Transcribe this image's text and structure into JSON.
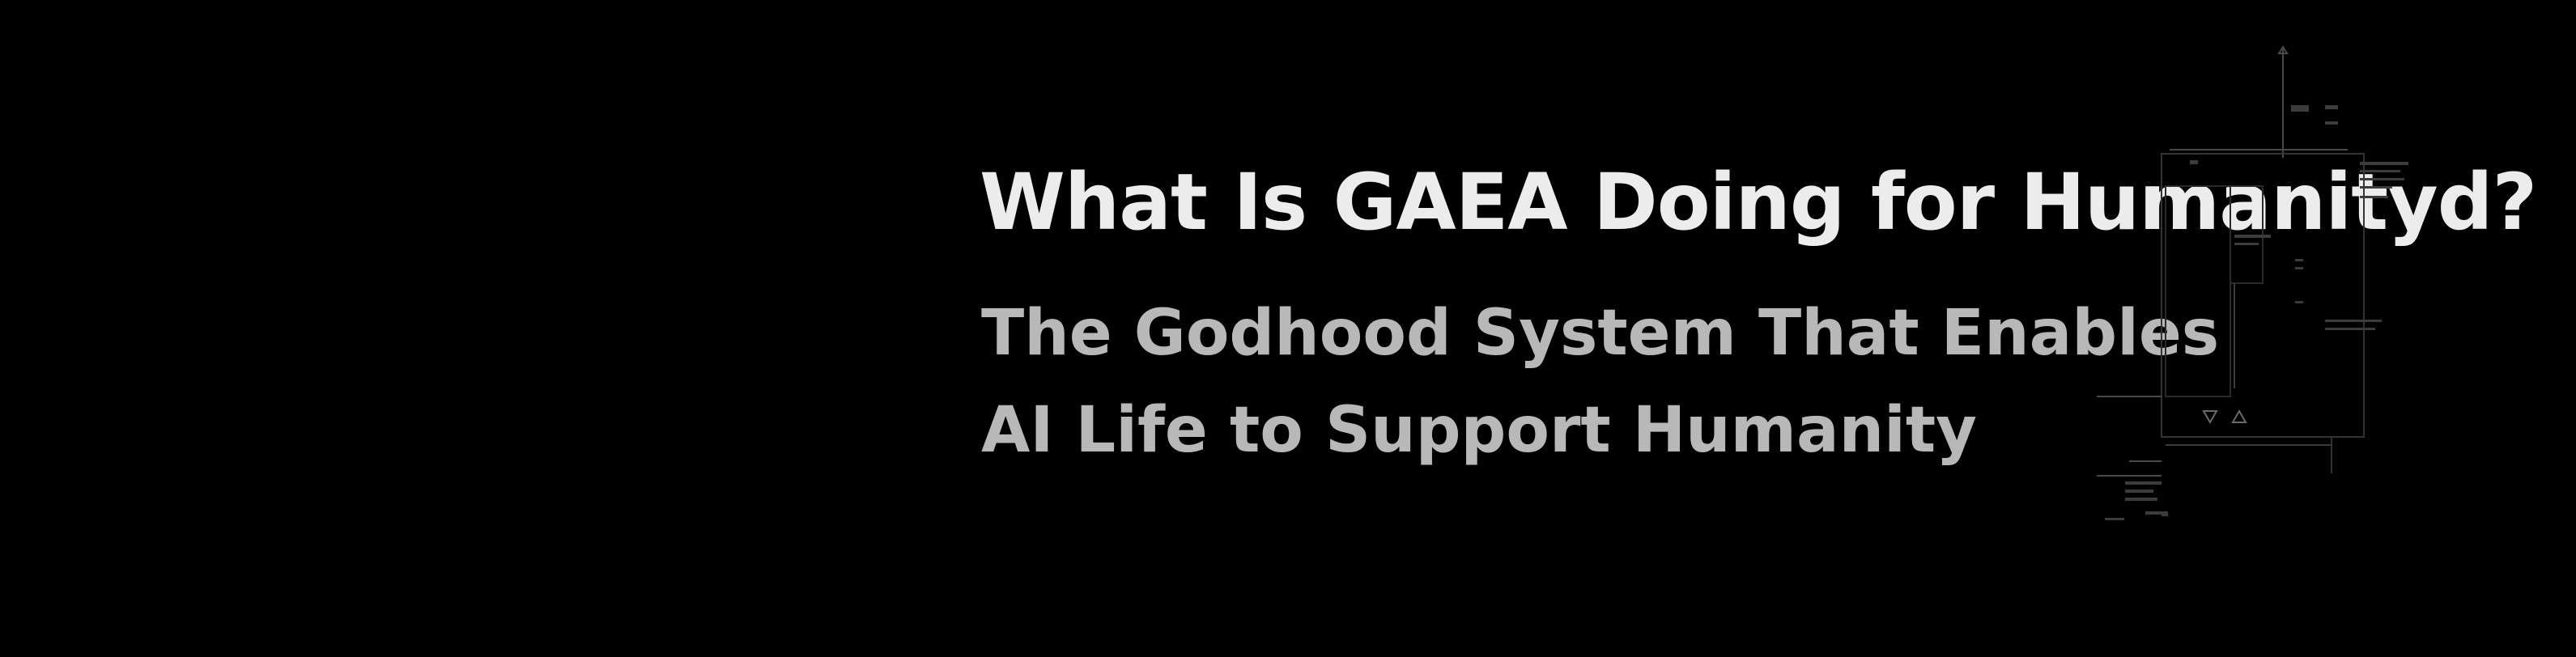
{
  "hero": {
    "headline": "What Is GAEA Doing for Humanityd?",
    "subline_1": "The Godhood System That Enables",
    "subline_2": "AI Life to Support Humanity"
  },
  "colors": {
    "background": "#000000",
    "headline": "#ececec",
    "subline": "#b8b8b8",
    "hud_lines": "#5a5a5a"
  },
  "decoration": {
    "icon": "hud-schematic-icon"
  }
}
